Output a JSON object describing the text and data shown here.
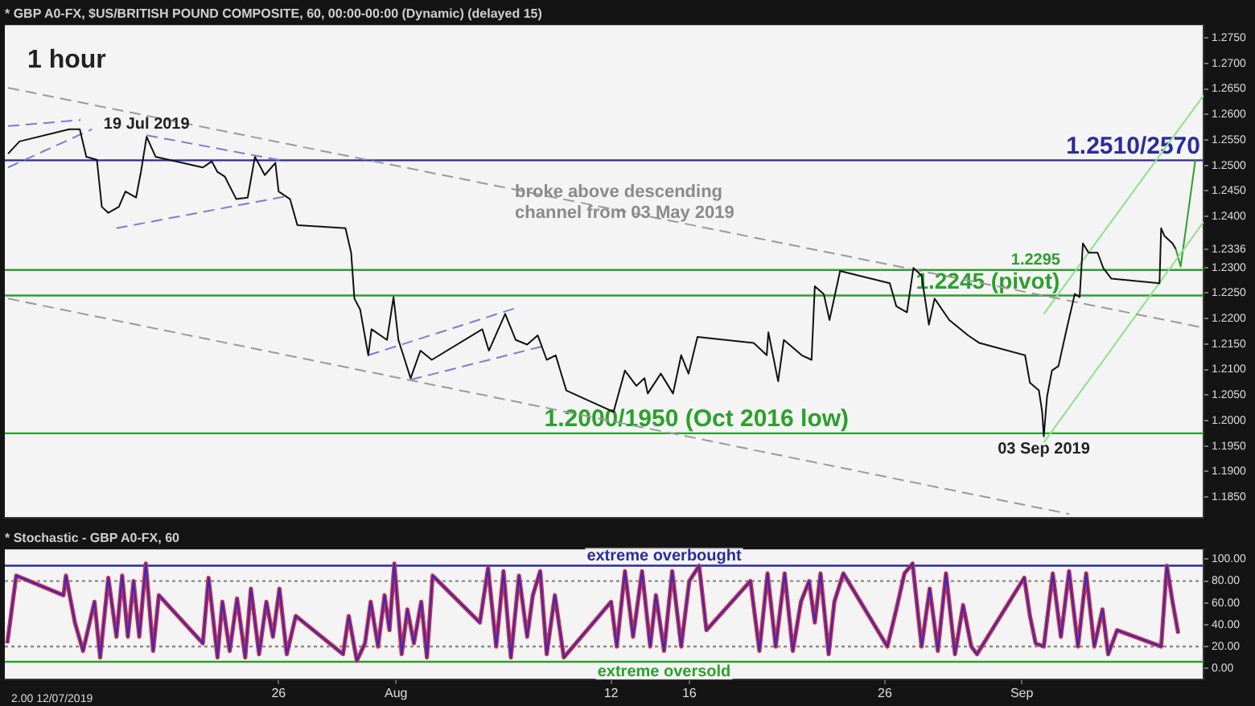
{
  "chart_data": [
    {
      "type": "line",
      "title": "* GBP A0-FX, $US/BRITISH POUND COMPOSITE, 60, 00:00-00:00 (Dynamic) (delayed 15)",
      "annotations": [
        "1 hour",
        {
          "text": "19 Jul 2019",
          "x": "2019-07-19T06:00",
          "y": 1.2556
        },
        {
          "text": "broke above descending channel from 03 May 2019",
          "x": "2019-08-07T02:00",
          "y": 1.2465
        },
        {
          "text": "03 Sep 2019",
          "x": "2019-09-03T03:00",
          "y": 1.1969
        }
      ],
      "series": [
        {
          "color": "#111111",
          "x": [
            "2019-07-12T04:00",
            "2019-07-12T18:00",
            "2019-07-15T07:00",
            "2019-07-15T20:00",
            "2019-07-16T04:00",
            "2019-07-16T17:00",
            "2019-07-16T23:00",
            "2019-07-17T07:00",
            "2019-07-17T20:00",
            "2019-07-18T04:00",
            "2019-07-18T17:00",
            "2019-07-18T23:00",
            "2019-07-19T06:00",
            "2019-07-19T17:00",
            "2019-07-22T03:00",
            "2019-07-22T14:00",
            "2019-07-22T21:00",
            "2019-07-23T06:00",
            "2019-07-23T20:00",
            "2019-07-24T10:00",
            "2019-07-24T19:00",
            "2019-07-25T07:00",
            "2019-07-25T20:00",
            "2019-07-26T00:00",
            "2019-07-26T14:00",
            "2019-07-26T23:00",
            "2019-07-29T10:00",
            "2019-07-29T17:00",
            "2019-07-29T21:00",
            "2019-07-30T04:00",
            "2019-07-30T14:00",
            "2019-07-30T18:00",
            "2019-07-31T13:00",
            "2019-07-31T21:00",
            "2019-08-01T03:00",
            "2019-08-01T18:00",
            "2019-08-02T06:00",
            "2019-08-02T20:00",
            "2019-08-05T10:00",
            "2019-08-05T18:00",
            "2019-08-06T14:00",
            "2019-08-07T03:00",
            "2019-08-07T17:00",
            "2019-08-08T06:00",
            "2019-08-08T17:00",
            "2019-08-09T04:00",
            "2019-08-09T17:00",
            "2019-08-12T03:00",
            "2019-08-12T17:00",
            "2019-08-13T07:00",
            "2019-08-13T17:00",
            "2019-08-13T21:00",
            "2019-08-14T13:00",
            "2019-08-15T04:00",
            "2019-08-15T14:00",
            "2019-08-15T23:00",
            "2019-08-16T10:00",
            "2019-08-19T07:00",
            "2019-08-19T23:00",
            "2019-08-20T01:00",
            "2019-08-20T13:00",
            "2019-08-20T20:00",
            "2019-08-21T18:00",
            "2019-08-22T06:00",
            "2019-08-22T10:00",
            "2019-08-22T21:00",
            "2019-08-23T04:00",
            "2019-08-23T17:00",
            "2019-08-26T06:00",
            "2019-08-26T14:00",
            "2019-08-27T03:00",
            "2019-08-27T11:00",
            "2019-08-27T21:00",
            "2019-08-28T06:00",
            "2019-08-28T13:00",
            "2019-08-29T07:00",
            "2019-08-30T06:00",
            "2019-08-30T20:00",
            "2019-09-02T04:00",
            "2019-09-02T10:00",
            "2019-09-02T21:00",
            "2019-09-03T01:00",
            "2019-09-03T03:00",
            "2019-09-03T07:00",
            "2019-09-03T13:00",
            "2019-09-03T21:00",
            "2019-09-04T07:00",
            "2019-09-04T17:00",
            "2019-09-04T23:00",
            "2019-09-05T03:00",
            "2019-09-05T10:00",
            "2019-09-05T21:00",
            "2019-09-06T04:00",
            "2019-09-06T14:00",
            "2019-09-09T01:00",
            "2019-09-09T03:00",
            "2019-09-09T07:00",
            "2019-09-09T17:00",
            "2019-09-09T21:00"
          ],
          "values": [
            1.2523,
            1.2547,
            1.2571,
            1.2571,
            1.2517,
            1.2511,
            1.2419,
            1.2407,
            1.2419,
            1.2449,
            1.2437,
            1.2487,
            1.2556,
            1.2517,
            1.2496,
            1.2508,
            1.2487,
            1.2478,
            1.2434,
            1.2437,
            1.2517,
            1.2481,
            1.2505,
            1.2449,
            1.2434,
            1.2383,
            1.2377,
            1.2329,
            1.2239,
            1.2218,
            1.2128,
            1.2179,
            1.2158,
            1.2242,
            1.2158,
            1.2083,
            1.2137,
            1.2119,
            1.2179,
            1.2137,
            1.2209,
            1.2158,
            1.2149,
            1.2167,
            1.2119,
            1.2128,
            1.2059,
            1.2017,
            1.2098,
            1.2068,
            1.2083,
            1.2053,
            1.2092,
            1.2053,
            1.2128,
            1.2092,
            1.2164,
            1.2152,
            1.2128,
            1.2173,
            1.2077,
            1.2158,
            1.2128,
            1.2119,
            1.2263,
            1.2248,
            1.2197,
            1.2293,
            1.2269,
            1.2224,
            1.2212,
            1.2299,
            1.2284,
            1.2188,
            1.2239,
            1.2197,
            1.2167,
            1.2152,
            1.2128,
            1.2074,
            1.2059,
            1.2017,
            1.1969,
            1.2047,
            1.2098,
            1.2107,
            1.2179,
            1.2248,
            1.2242,
            1.2347,
            1.2329,
            1.2329,
            1.2299,
            1.2278,
            1.2269,
            1.2377,
            1.2362,
            1.2347,
            1.2336
          ]
        },
        {
          "color": "#9a9a9a",
          "line_style": "dashed",
          "x": [
            "2019-07-12T04:00",
            "2019-09-11T07:00"
          ],
          "values": [
            1.2652,
            1.2182
          ]
        },
        {
          "color": "#9a9a9a",
          "line_style": "dashed",
          "x": [
            "2019-07-12T04:00",
            "2019-09-04T10:00"
          ],
          "values": [
            1.2239,
            1.1817
          ]
        },
        {
          "color": "#7b7bd6",
          "line_style": "dashed",
          "x": [
            "2019-07-12T04:00",
            "2019-07-15T21:00"
          ],
          "values": [
            1.2577,
            1.2589
          ]
        },
        {
          "color": "#7b7bd6",
          "line_style": "dashed",
          "x": [
            "2019-07-12T04:00",
            "2019-07-16T11:00"
          ],
          "values": [
            1.2496,
            1.2571
          ]
        },
        {
          "color": "#7b7bd6",
          "line_style": "dashed",
          "x": [
            "2019-07-19T06:00",
            "2019-07-26T10:00"
          ],
          "values": [
            1.2559,
            1.2508
          ]
        },
        {
          "color": "#7b7bd6",
          "line_style": "dashed",
          "x": [
            "2019-07-17T17:00",
            "2019-07-26T11:00"
          ],
          "values": [
            1.2377,
            1.244
          ]
        },
        {
          "color": "#7b7bd6",
          "line_style": "dashed",
          "x": [
            "2019-07-30T14:00",
            "2019-08-07T04:00"
          ],
          "values": [
            1.2128,
            1.2221
          ]
        },
        {
          "color": "#7b7bd6",
          "line_style": "dashed",
          "x": [
            "2019-08-01T18:00",
            "2019-08-08T13:00"
          ],
          "values": [
            1.208,
            1.2146
          ]
        },
        {
          "color": "#8ee08e",
          "line_style": "solid",
          "x": [
            "2019-09-03T03:00",
            "2019-09-11T07:00"
          ],
          "values": [
            1.2209,
            1.2637
          ]
        },
        {
          "color": "#8ee08e",
          "line_style": "solid",
          "x": [
            "2019-09-03T03:00",
            "2019-09-11T07:00"
          ],
          "values": [
            1.1957,
            1.2389
          ]
        },
        {
          "color": "#2ca02c",
          "line_style": "solid",
          "x": [
            "2019-09-09T21:00",
            "2019-09-10T03:00",
            "2019-09-10T21:00"
          ],
          "values": [
            1.2336,
            1.2302,
            1.2511
          ]
        }
      ],
      "ref_lines": [
        {
          "axis": "y",
          "value": 1.251,
          "label": "1.2510/2570",
          "color": "#2b2b9e"
        },
        {
          "axis": "y",
          "value": 1.2295,
          "label": "1.2295",
          "color": "#2ca02c"
        },
        {
          "axis": "y",
          "value": 1.2245,
          "label": "1.2245 (pivot)",
          "color": "#2ca02c"
        },
        {
          "axis": "y",
          "value": 1.1975,
          "label": "1.2000/1950 (Oct 2016 low)",
          "color": "#2ca02c"
        }
      ],
      "xlim": [
        "2019-07-12T00:00",
        "2019-09-11T07:00"
      ],
      "ylim": [
        1.181,
        1.2775
      ],
      "yticks": [
        {
          "value": 1.185,
          "label": "1.1850"
        },
        {
          "value": 1.19,
          "label": "1.1900"
        },
        {
          "value": 1.195,
          "label": "1.1950"
        },
        {
          "value": 1.2,
          "label": "1.2000"
        },
        {
          "value": 1.205,
          "label": "1.2050"
        },
        {
          "value": 1.21,
          "label": "1.2100"
        },
        {
          "value": 1.215,
          "label": "1.2150"
        },
        {
          "value": 1.22,
          "label": "1.2200"
        },
        {
          "value": 1.225,
          "label": "1.2250"
        },
        {
          "value": 1.23,
          "label": "1.2300"
        },
        {
          "value": 1.2336,
          "label": "1.2336"
        },
        {
          "value": 1.24,
          "label": "1.2400"
        },
        {
          "value": 1.245,
          "label": "1.2450"
        },
        {
          "value": 1.25,
          "label": "1.2500"
        },
        {
          "value": 1.255,
          "label": "1.2550"
        },
        {
          "value": 1.26,
          "label": "1.2600"
        },
        {
          "value": 1.265,
          "label": "1.2650"
        },
        {
          "value": 1.27,
          "label": "1.2700"
        },
        {
          "value": 1.275,
          "label": "1.2750"
        }
      ],
      "tick_labels": "y",
      "grid": false,
      "legend": false
    },
    {
      "type": "line",
      "title": "* Stochastic - GBP A0-FX, 60",
      "annotations": [
        "2.00 12/07/2019"
      ],
      "x": [
        "2019-07-12T03:00",
        "2019-07-12T14:00",
        "2019-07-15T00:00",
        "2019-07-15T03:00",
        "2019-07-15T14:00",
        "2019-07-16T00:00",
        "2019-07-16T14:00",
        "2019-07-16T21:00",
        "2019-07-17T07:00",
        "2019-07-17T17:00",
        "2019-07-18T00:00",
        "2019-07-18T07:00",
        "2019-07-18T14:00",
        "2019-07-18T21:00",
        "2019-07-19T05:00",
        "2019-07-19T14:00",
        "2019-07-19T21:00",
        "2019-07-22T03:00",
        "2019-07-22T10:00",
        "2019-07-22T21:00",
        "2019-07-23T03:00",
        "2019-07-23T12:00",
        "2019-07-23T21:00",
        "2019-07-24T07:00",
        "2019-07-24T14:00",
        "2019-07-25T00:00",
        "2019-07-25T09:00",
        "2019-07-25T17:00",
        "2019-07-26T01:00",
        "2019-07-26T10:00",
        "2019-07-26T21:00",
        "2019-07-29T07:00",
        "2019-07-29T14:00",
        "2019-07-30T00:00",
        "2019-07-30T10:00",
        "2019-07-30T17:00",
        "2019-07-31T02:00",
        "2019-07-31T10:00",
        "2019-07-31T16:00",
        "2019-07-31T22:00",
        "2019-08-01T07:00",
        "2019-08-01T14:00",
        "2019-08-01T22:00",
        "2019-08-02T07:00",
        "2019-08-02T14:00",
        "2019-08-02T21:00",
        "2019-08-05T07:00",
        "2019-08-05T17:00",
        "2019-08-06T03:00",
        "2019-08-06T12:00",
        "2019-08-06T21:00",
        "2019-08-07T07:00",
        "2019-08-07T17:00",
        "2019-08-08T00:00",
        "2019-08-08T09:00",
        "2019-08-08T17:00",
        "2019-08-09T03:00",
        "2019-08-09T14:00",
        "2019-08-12T00:00",
        "2019-08-12T07:00",
        "2019-08-12T17:00",
        "2019-08-13T03:00",
        "2019-08-13T14:00",
        "2019-08-14T00:00",
        "2019-08-14T07:00",
        "2019-08-14T17:00",
        "2019-08-15T03:00",
        "2019-08-15T14:00",
        "2019-08-16T00:00",
        "2019-08-16T12:00",
        "2019-08-16T21:00",
        "2019-08-19T03:00",
        "2019-08-19T14:00",
        "2019-08-20T00:00",
        "2019-08-20T10:00",
        "2019-08-20T21:00",
        "2019-08-21T07:00",
        "2019-08-21T17:00",
        "2019-08-22T03:00",
        "2019-08-22T10:00",
        "2019-08-22T17:00",
        "2019-08-23T03:00",
        "2019-08-23T10:00",
        "2019-08-23T21:00",
        "2019-08-26T03:00",
        "2019-08-26T14:00",
        "2019-08-27T00:00",
        "2019-08-27T10:00",
        "2019-08-27T21:00",
        "2019-08-28T07:00",
        "2019-08-28T17:00",
        "2019-08-29T03:00",
        "2019-08-29T14:00",
        "2019-08-30T00:00",
        "2019-08-30T10:00",
        "2019-08-30T17:00",
        "2019-09-02T03:00",
        "2019-09-02T10:00",
        "2019-09-02T17:00",
        "2019-09-03T03:00",
        "2019-09-03T14:00",
        "2019-09-04T00:00",
        "2019-09-04T10:00",
        "2019-09-04T21:00",
        "2019-09-05T07:00",
        "2019-09-05T17:00",
        "2019-09-06T03:00",
        "2019-09-06T10:00",
        "2019-09-06T21:00",
        "2019-09-09T03:00",
        "2019-09-09T10:00",
        "2019-09-09T17:00",
        "2019-09-10T00:00"
      ],
      "series": [
        {
          "color": "#2b2bcf",
          "values": [
            23,
            85,
            67,
            85,
            42,
            16,
            61,
            10,
            83,
            29,
            85,
            29,
            80,
            29,
            96,
            16,
            67,
            23,
            83,
            10,
            61,
            16,
            64,
            10,
            73,
            13,
            61,
            29,
            73,
            13,
            48,
            13,
            48,
            7,
            23,
            61,
            20,
            67,
            35,
            96,
            13,
            54,
            23,
            61,
            10,
            85,
            42,
            92,
            20,
            89,
            10,
            85,
            29,
            67,
            89,
            13,
            67,
            10,
            61,
            20,
            89,
            29,
            89,
            20,
            67,
            16,
            89,
            20,
            80,
            94,
            35,
            80,
            16,
            87,
            20,
            87,
            16,
            61,
            80,
            42,
            87,
            13,
            61,
            87,
            20,
            54,
            87,
            96,
            20,
            73,
            16,
            87,
            13,
            58,
            20,
            13,
            83,
            48,
            23,
            20,
            87,
            29,
            89,
            20,
            87,
            20,
            54,
            13,
            35,
            20,
            94,
            61,
            32
          ]
        },
        {
          "color": "#d9303a",
          "values": [
            23,
            85,
            67,
            85,
            42,
            16,
            61,
            10,
            83,
            29,
            85,
            29,
            80,
            29,
            96,
            16,
            67,
            23,
            83,
            10,
            61,
            16,
            64,
            10,
            73,
            13,
            61,
            29,
            73,
            13,
            48,
            13,
            48,
            7,
            23,
            61,
            20,
            67,
            35,
            96,
            13,
            54,
            23,
            61,
            10,
            85,
            42,
            92,
            20,
            89,
            10,
            85,
            29,
            67,
            89,
            13,
            67,
            10,
            61,
            20,
            89,
            29,
            89,
            20,
            67,
            16,
            89,
            20,
            80,
            94,
            35,
            80,
            16,
            87,
            20,
            87,
            16,
            61,
            80,
            42,
            87,
            13,
            61,
            87,
            20,
            54,
            87,
            96,
            20,
            73,
            16,
            87,
            13,
            58,
            20,
            13,
            83,
            48,
            23,
            20,
            87,
            29,
            89,
            20,
            87,
            20,
            54,
            13,
            35,
            20,
            94,
            61,
            32
          ]
        }
      ],
      "ref_lines": [
        {
          "axis": "y",
          "value": 94,
          "label": "extreme overbought",
          "color": "#2b2b9e"
        },
        {
          "axis": "y",
          "value": 6,
          "label": "extreme oversold",
          "color": "#2ca02c"
        },
        {
          "axis": "y",
          "value": 80,
          "color": "#8a8a8a",
          "line_style": "dotted"
        },
        {
          "axis": "y",
          "value": 20,
          "color": "#8a8a8a",
          "line_style": "dotted"
        }
      ],
      "xlim": [
        "2019-07-12T00:00",
        "2019-09-11T07:00"
      ],
      "xticks": [
        {
          "value": "2019-07-26",
          "label": "26"
        },
        {
          "value": "2019-08-01",
          "label": "Aug"
        },
        {
          "value": "2019-08-12",
          "label": "12"
        },
        {
          "value": "2019-08-16",
          "label": "16"
        },
        {
          "value": "2019-08-26",
          "label": "26"
        },
        {
          "value": "2019-09-02",
          "label": "Sep"
        }
      ],
      "ylim": [
        -10,
        109
      ],
      "yticks": [
        {
          "value": 0,
          "label": "0.00"
        },
        {
          "value": 20,
          "label": "20.00"
        },
        {
          "value": 40,
          "label": "40.00"
        },
        {
          "value": 60,
          "label": "60.00"
        },
        {
          "value": 80,
          "label": "80.00"
        },
        {
          "value": 100,
          "label": "100.00"
        }
      ],
      "grid": false,
      "legend": false
    }
  ]
}
